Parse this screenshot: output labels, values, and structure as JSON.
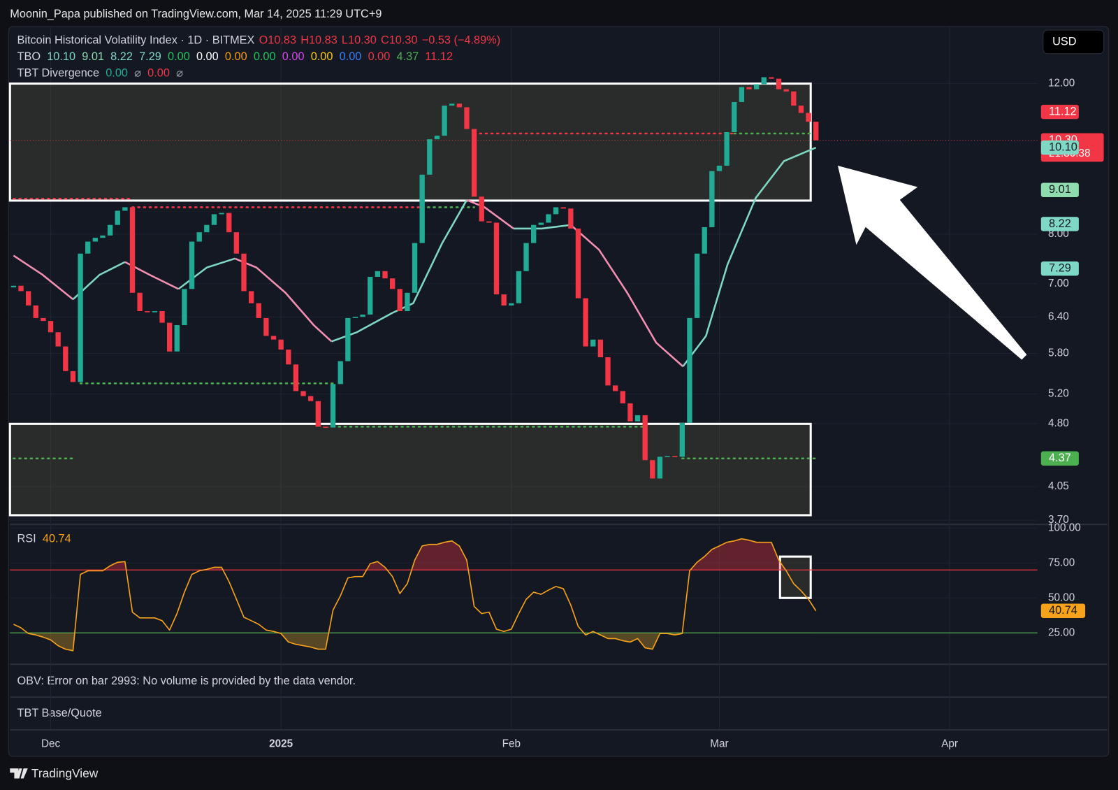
{
  "publisher": "Moonin_Papa published on TradingView.com, Mar 14, 2025 11:29 UTC+9",
  "brand": "TradingView",
  "currency": "USD",
  "obv_message": "OBV: Error on bar 2993: No volume is provided by the data vendor.",
  "base_quote": "TBT Base/Quote",
  "chart_data": [
    {
      "type": "candlestick",
      "title": "Bitcoin Historical Volatility Index · 1D · BITMEX",
      "ohlc_legend": [
        "O10.83",
        "H10.83",
        "L10.30",
        "C10.30",
        "−0.53 (−4.89%)"
      ],
      "indicators": [
        {
          "name": "TBO",
          "values": [
            "10.10",
            "9.01",
            "8.22",
            "7.29",
            "0.00",
            "0.00",
            "0.00",
            "0.00",
            "0.00",
            "0.00",
            "0.00",
            "0.00",
            "4.37",
            "11.12"
          ],
          "colors": [
            "#7fd8c3",
            "#8fdcae",
            "#7fd8c3",
            "#7fd8c3",
            "#22c55e",
            "#ffffff",
            "#f59e0b",
            "#22c55e",
            "#d946ef",
            "#facc15",
            "#3b82f6",
            "#f23645",
            "#4caf50",
            "#f23645"
          ]
        },
        {
          "name": "TBT Divergence",
          "values": [
            "0.00",
            "⌀",
            "0.00",
            "⌀"
          ],
          "colors": [
            "#22ab94",
            "#9598a1",
            "#f23645",
            "#9598a1"
          ]
        }
      ],
      "log": true,
      "ylim": [
        3.7,
        13.97
      ],
      "yticks": [
        {
          "value": 12,
          "label": "12.00"
        },
        {
          "value": 8,
          "label": "8.00"
        },
        {
          "value": 7,
          "label": "7.00"
        },
        {
          "value": 6.4,
          "label": "6.40"
        },
        {
          "value": 5.8,
          "label": "5.80"
        },
        {
          "value": 5.2,
          "label": "5.20"
        },
        {
          "value": 4.8,
          "label": "4.80"
        },
        {
          "value": 4.05,
          "label": "4.05"
        },
        {
          "value": 3.7,
          "label": "3.70"
        }
      ],
      "xticks": [
        {
          "value": 5,
          "label": "Dec"
        },
        {
          "value": 36,
          "label": "2025"
        },
        {
          "value": 67,
          "label": "Feb"
        },
        {
          "value": 95,
          "label": "Mar"
        },
        {
          "value": 126,
          "label": "Apr"
        }
      ],
      "grid": true,
      "up_color": "#22ab94",
      "down_color": "#f23645",
      "open": [
        6.93,
        6.96,
        6.86,
        6.6,
        6.38,
        6.33,
        6.14,
        5.91,
        5.53,
        5.37,
        7.59,
        7.84,
        7.92,
        7.97,
        8.2,
        8.52,
        8.6,
        6.83,
        6.5,
        6.48,
        6.5,
        6.3,
        5.83,
        6.26,
        6.9,
        7.84,
        8.04,
        8.2,
        8.44,
        8.47,
        8.04,
        7.59,
        6.86,
        6.64,
        6.38,
        6.08,
        6.02,
        5.86,
        5.63,
        5.24,
        5.17,
        5.1,
        4.76,
        4.75,
        5.34,
        5.68,
        6.38,
        6.4,
        6.44,
        7.13,
        7.24,
        7.1,
        6.9,
        6.5,
        6.83,
        7.81,
        9.39,
        10.33,
        10.43,
        11.31,
        11.37,
        11.26,
        10.62,
        8.85,
        8.28,
        8.25,
        6.8,
        6.6,
        6.64,
        7.24,
        7.81,
        8.2,
        8.25,
        8.44,
        8.6,
        8.57,
        8.12,
        6.73,
        5.91,
        6.02,
        5.74,
        5.32,
        5.24,
        5.07,
        4.83,
        4.91,
        4.35,
        4.14,
        4.39,
        4.4,
        4.39,
        4.81,
        6.38,
        7.59,
        8.15,
        9.48,
        9.62,
        10.53,
        11.42,
        11.89,
        11.82,
        11.98,
        12.21,
        12.16,
        11.82,
        11.75,
        11.31,
        11.09,
        10.83
      ],
      "close": [
        6.96,
        6.86,
        6.6,
        6.38,
        6.33,
        6.14,
        5.91,
        5.53,
        5.37,
        7.59,
        7.84,
        7.92,
        7.97,
        8.2,
        8.52,
        8.6,
        6.83,
        6.5,
        6.48,
        6.5,
        6.3,
        5.83,
        6.26,
        6.9,
        7.84,
        8.04,
        8.2,
        8.44,
        8.47,
        8.04,
        7.59,
        6.86,
        6.64,
        6.38,
        6.08,
        6.02,
        5.86,
        5.63,
        5.24,
        5.17,
        5.1,
        4.76,
        4.75,
        5.34,
        5.68,
        6.38,
        6.4,
        6.44,
        7.13,
        7.24,
        7.1,
        6.9,
        6.5,
        6.83,
        7.81,
        9.39,
        10.33,
        10.43,
        11.31,
        11.37,
        11.26,
        10.62,
        8.85,
        8.28,
        8.25,
        6.8,
        6.6,
        6.64,
        7.24,
        7.81,
        8.2,
        8.25,
        8.44,
        8.6,
        8.57,
        8.12,
        6.73,
        5.91,
        6.02,
        5.74,
        5.32,
        5.24,
        5.07,
        4.83,
        4.91,
        4.35,
        4.14,
        4.39,
        4.4,
        4.39,
        4.81,
        6.38,
        7.59,
        8.15,
        9.48,
        9.62,
        10.53,
        11.42,
        11.89,
        11.82,
        11.98,
        12.21,
        12.16,
        11.82,
        11.75,
        11.31,
        11.09,
        10.83,
        10.3
      ],
      "ma": {
        "up_color": "#7fd8c3",
        "down_color": "#f48fb1",
        "x": [
          0,
          3.9,
          8.0,
          11.6,
          15.0,
          18.3,
          22.2,
          26.0,
          29.8,
          32.7,
          36.6,
          40.4,
          42.8,
          46.2,
          51.0,
          53.8,
          57.7,
          61.0,
          63.4,
          67.3,
          71.1,
          75.0,
          78.8,
          82.6,
          86.5,
          90.1,
          93.2,
          96.1,
          99.9,
          103.7,
          108
        ],
        "values": [
          7.55,
          7.17,
          6.71,
          7.17,
          7.42,
          7.17,
          6.9,
          7.31,
          7.49,
          7.31,
          6.83,
          6.26,
          5.99,
          6.14,
          6.47,
          6.64,
          7.81,
          8.77,
          8.6,
          8.12,
          8.12,
          8.2,
          7.67,
          6.83,
          5.97,
          5.6,
          6.08,
          7.37,
          8.82,
          9.74,
          10.1
        ]
      },
      "levels": [
        {
          "value": 10.49,
          "start": 62,
          "end": 97,
          "color": "#f23645"
        },
        {
          "value": 10.49,
          "start": 97,
          "end": 108,
          "color": "#4caf50"
        },
        {
          "value": 8.8,
          "start": 0,
          "end": 16,
          "color": "#f23645"
        },
        {
          "value": 8.6,
          "start": 16,
          "end": 55,
          "color": "#f23645"
        },
        {
          "value": 8.6,
          "start": 55,
          "end": 62,
          "color": "#4caf50"
        },
        {
          "value": 5.35,
          "start": 9,
          "end": 43,
          "color": "#4caf50"
        },
        {
          "value": 4.76,
          "start": 43,
          "end": 85,
          "color": "#4caf50"
        },
        {
          "value": 4.37,
          "start": 0,
          "end": 8,
          "color": "#4caf50"
        },
        {
          "value": 4.37,
          "start": 90,
          "end": 108,
          "color": "#4caf50"
        }
      ],
      "price_tags": [
        {
          "value": 11.12,
          "label": "11.12",
          "color": "#f23645",
          "text_color": "#ffffff"
        },
        {
          "value": 10.3,
          "label": "10.30",
          "color": "#f23645",
          "text_color": "#ffffff",
          "countdown": "21:30:38"
        },
        {
          "value": 10.1,
          "label": "10.10",
          "color": "#7fd8c3",
          "text_color": "#131722"
        },
        {
          "value": 9.01,
          "label": "9.01",
          "color": "#8fdcae",
          "text_color": "#131722"
        },
        {
          "value": 8.22,
          "label": "8.22",
          "color": "#7fd8c3",
          "text_color": "#131722"
        },
        {
          "value": 7.29,
          "label": "7.29",
          "color": "#7fd8c3",
          "text_color": "#131722"
        },
        {
          "value": 4.37,
          "label": "4.37",
          "color": "#4caf50",
          "text_color": "#ffffff"
        }
      ]
    },
    {
      "type": "line",
      "title": "RSI",
      "color": "#f7a21b",
      "ylim": [
        3,
        100
      ],
      "yticks": [
        {
          "value": 100,
          "label": "100.00"
        },
        {
          "value": 75,
          "label": "75.00"
        },
        {
          "value": 50,
          "label": "50.00"
        },
        {
          "value": 25,
          "label": "25.00"
        }
      ],
      "levels": [
        {
          "value": 70,
          "color": "#f23645"
        },
        {
          "value": 25,
          "color": "#4caf50"
        }
      ],
      "values": [
        31.1,
        28.6,
        24.5,
        23.5,
        21.9,
        19.9,
        15.8,
        13.3,
        12.2,
        66.8,
        69.4,
        69.4,
        69.4,
        73.0,
        75.5,
        76.0,
        39.8,
        35.7,
        35.7,
        35.7,
        33.7,
        27.0,
        38.8,
        54.1,
        66.8,
        69.4,
        70.4,
        71.9,
        71.9,
        61.7,
        49.0,
        36.2,
        33.7,
        31.1,
        27.0,
        26.0,
        24.5,
        18.4,
        16.8,
        15.8,
        14.8,
        13.3,
        13.3,
        41.3,
        51.5,
        64.3,
        65.3,
        65.3,
        74.5,
        76.0,
        71.9,
        65.3,
        53.1,
        60.2,
        77.0,
        87.2,
        88.3,
        88.3,
        89.8,
        90.8,
        87.2,
        77.0,
        43.9,
        38.8,
        39.8,
        27.6,
        26.0,
        27.6,
        38.8,
        49.0,
        54.1,
        52.6,
        55.6,
        58.2,
        56.6,
        44.9,
        29.6,
        23.5,
        26.0,
        23.5,
        20.9,
        20.9,
        19.4,
        18.4,
        20.9,
        14.3,
        13.3,
        24.5,
        24.5,
        23.5,
        24.5,
        69.4,
        75.5,
        79.6,
        84.7,
        87.2,
        89.8,
        90.8,
        92.3,
        91.3,
        89.8,
        89.8,
        89.8,
        77.0,
        69.4,
        60.2,
        55.1,
        49.0,
        40.74
      ]
    }
  ]
}
